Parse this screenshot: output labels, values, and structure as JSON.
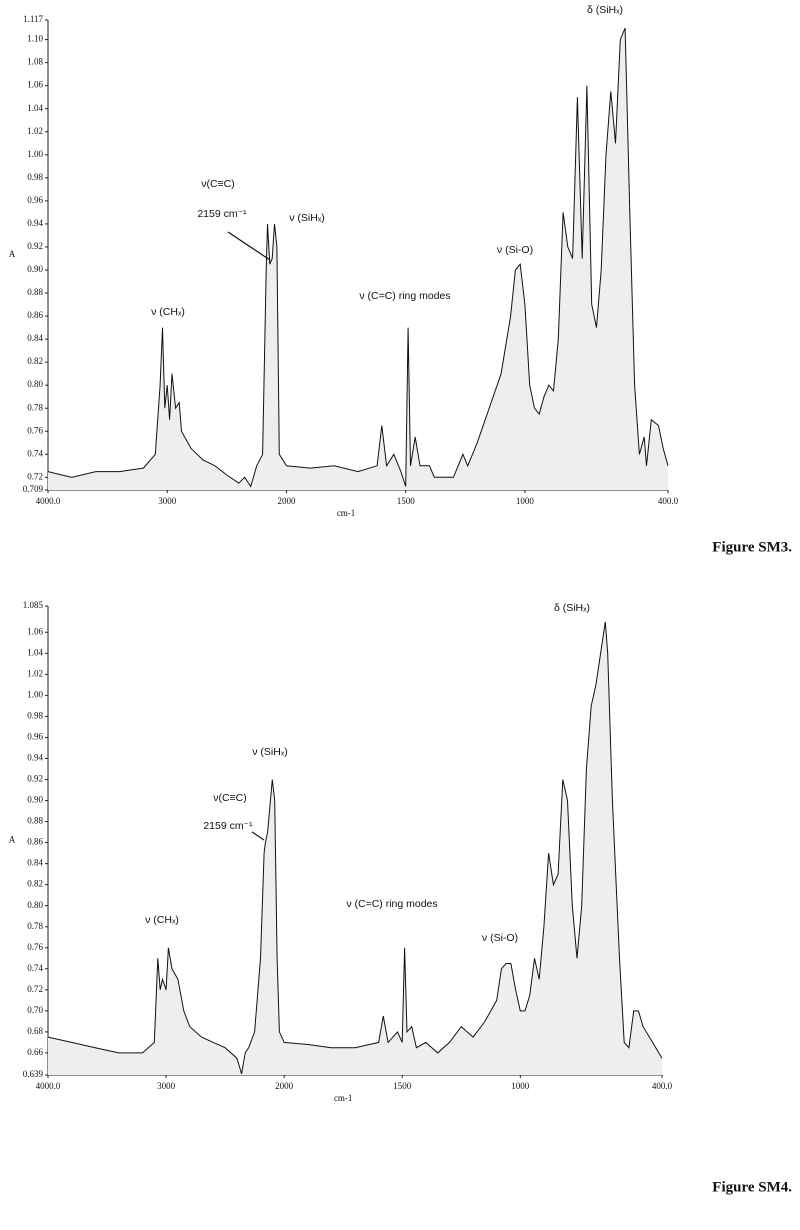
{
  "chart_data": [
    {
      "type": "line",
      "xlabel": "cm-1",
      "ylabel": "A",
      "caption": "Figure SM3.",
      "annotations": [
        "ν (CHₓ)",
        "ν(C≡C)",
        "2159 cm⁻¹",
        "ν (SiHₓ)",
        "ν (C=C) ring modes",
        "ν (Si-O)",
        "δ (SiHₓ)"
      ],
      "xlim": [
        4000,
        400
      ],
      "ylim": [
        0.709,
        1.117
      ],
      "xticks": [
        {
          "value": 4000,
          "label": "4000.0"
        },
        3000,
        2000,
        1500,
        1000,
        {
          "value": 400,
          "label": "400.0"
        }
      ],
      "yticks": [
        0.709,
        0.72,
        0.74,
        0.76,
        0.78,
        {
          "value": 0.8,
          "label": "0.80"
        },
        0.82,
        0.84,
        0.86,
        0.88,
        {
          "value": 0.9,
          "label": "0.90"
        },
        0.92,
        0.94,
        0.96,
        0.98,
        {
          "value": 1,
          "label": "1.00"
        },
        1.02,
        1.04,
        1.06,
        1.08,
        {
          "value": 1.1,
          "label": "1.10"
        },
        1.117
      ],
      "x": [
        4000,
        3800,
        3600,
        3400,
        3200,
        3100,
        3060,
        3040,
        3020,
        3000,
        2980,
        2960,
        2930,
        2900,
        2880,
        2800,
        2700,
        2600,
        2500,
        2400,
        2350,
        2300,
        2250,
        2200,
        2170,
        2159,
        2140,
        2120,
        2100,
        2080,
        2060,
        2000,
        1900,
        1800,
        1700,
        1620,
        1600,
        1580,
        1550,
        1520,
        1500,
        1490,
        1480,
        1460,
        1440,
        1400,
        1380,
        1340,
        1300,
        1260,
        1240,
        1200,
        1150,
        1100,
        1060,
        1040,
        1020,
        1000,
        980,
        960,
        940,
        920,
        900,
        880,
        860,
        840,
        820,
        800,
        780,
        760,
        740,
        720,
        700,
        680,
        660,
        640,
        620,
        600,
        580,
        560,
        540,
        520,
        500,
        490,
        470,
        440,
        420,
        400
      ],
      "series": [
        {
          "color": "#111111",
          "values": [
            0.725,
            0.72,
            0.725,
            0.725,
            0.728,
            0.74,
            0.8,
            0.85,
            0.78,
            0.8,
            0.77,
            0.81,
            0.78,
            0.785,
            0.76,
            0.745,
            0.735,
            0.73,
            0.722,
            0.715,
            0.72,
            0.712,
            0.73,
            0.74,
            0.9,
            0.94,
            0.905,
            0.91,
            0.94,
            0.92,
            0.74,
            0.73,
            0.728,
            0.73,
            0.725,
            0.73,
            0.765,
            0.73,
            0.74,
            0.725,
            0.712,
            0.85,
            0.73,
            0.755,
            0.73,
            0.73,
            0.72,
            0.72,
            0.72,
            0.74,
            0.73,
            0.75,
            0.78,
            0.81,
            0.86,
            0.9,
            0.905,
            0.87,
            0.8,
            0.78,
            0.775,
            0.79,
            0.8,
            0.795,
            0.84,
            0.95,
            0.92,
            0.91,
            1.05,
            0.91,
            1.06,
            0.87,
            0.85,
            0.9,
            1,
            1.055,
            1.01,
            1.1,
            1.11,
            0.95,
            0.8,
            0.74,
            0.755,
            0.73,
            0.77,
            0.765,
            0.745,
            0.73
          ]
        }
      ]
    },
    {
      "type": "line",
      "xlabel": "cm-1",
      "ylabel": "A",
      "caption": "Figure SM4.",
      "annotations": [
        "ν (CHₓ)",
        "ν(C≡C)",
        "2159 cm⁻¹",
        "ν (SiHₓ)",
        "ν (C=C) ring modes",
        "ν (Si-O)",
        "δ (SiHₓ)"
      ],
      "xlim": [
        4000,
        400
      ],
      "ylim": [
        0.639,
        1.085
      ],
      "xticks": [
        {
          "value": 4000,
          "label": "4000.0"
        },
        3000,
        2000,
        1500,
        1000,
        {
          "value": 400,
          "label": "400.0"
        }
      ],
      "yticks": [
        0.639,
        0.66,
        0.68,
        {
          "value": 0.7,
          "label": "0.70"
        },
        0.72,
        0.74,
        0.76,
        0.78,
        {
          "value": 0.8,
          "label": "0.80"
        },
        0.82,
        0.84,
        0.86,
        0.88,
        {
          "value": 0.9,
          "label": "0.90"
        },
        0.92,
        0.94,
        0.96,
        0.98,
        {
          "value": 1,
          "label": "1.00"
        },
        1.02,
        1.04,
        1.06,
        1.085
      ],
      "x": [
        4000,
        3800,
        3600,
        3400,
        3200,
        3100,
        3070,
        3050,
        3030,
        3000,
        2980,
        2950,
        2900,
        2850,
        2800,
        2700,
        2600,
        2500,
        2400,
        2360,
        2330,
        2300,
        2250,
        2200,
        2170,
        2159,
        2140,
        2100,
        2080,
        2060,
        2040,
        2000,
        1900,
        1800,
        1700,
        1600,
        1580,
        1560,
        1520,
        1500,
        1490,
        1480,
        1460,
        1440,
        1400,
        1350,
        1300,
        1250,
        1200,
        1150,
        1100,
        1080,
        1060,
        1040,
        1020,
        1000,
        980,
        960,
        940,
        920,
        900,
        880,
        860,
        840,
        820,
        800,
        780,
        760,
        740,
        720,
        700,
        680,
        660,
        640,
        630,
        610,
        580,
        560,
        540,
        520,
        500,
        480,
        440,
        400
      ],
      "series": [
        {
          "color": "#111111",
          "values": [
            0.675,
            0.67,
            0.665,
            0.66,
            0.66,
            0.67,
            0.75,
            0.72,
            0.73,
            0.72,
            0.76,
            0.74,
            0.73,
            0.7,
            0.685,
            0.675,
            0.67,
            0.665,
            0.655,
            0.64,
            0.66,
            0.665,
            0.68,
            0.75,
            0.85,
            0.86,
            0.87,
            0.92,
            0.9,
            0.75,
            0.68,
            0.67,
            0.668,
            0.665,
            0.665,
            0.67,
            0.695,
            0.67,
            0.68,
            0.67,
            0.76,
            0.68,
            0.685,
            0.665,
            0.67,
            0.66,
            0.67,
            0.685,
            0.675,
            0.69,
            0.71,
            0.74,
            0.745,
            0.745,
            0.72,
            0.7,
            0.7,
            0.715,
            0.75,
            0.73,
            0.78,
            0.85,
            0.82,
            0.83,
            0.92,
            0.9,
            0.8,
            0.75,
            0.8,
            0.93,
            0.99,
            1.01,
            1.04,
            1.07,
            1.04,
            0.9,
            0.75,
            0.67,
            0.665,
            0.7,
            0.7,
            0.685,
            0.67,
            0.655
          ]
        }
      ]
    }
  ]
}
